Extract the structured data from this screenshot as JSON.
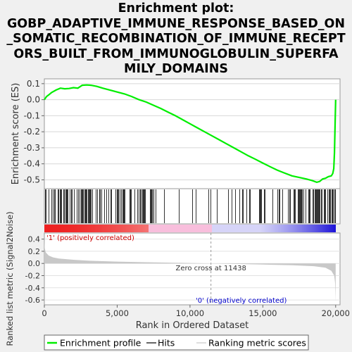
{
  "title_lines": [
    "Enrichment plot:",
    "GOBP_ADAPTIVE_IMMUNE_RESPONSE_BASED_ON",
    "_SOMATIC_RECOMBINATION_OF_IMMUNE_RECEPT",
    "ORS_BUILT_FROM_IMMUNOGLOBULIN_SUPERFA",
    "MILY_DOMAINS"
  ],
  "colors": {
    "enrichment_line": "#00ee00",
    "hits": "#000000",
    "metric_fill": "#c8c8c8",
    "positive_bar": "#ee2020",
    "negative_bar": "#1a10d8",
    "pos_label": "#cc0000",
    "neg_label": "#0000cc"
  },
  "chart_data": {
    "type": "line",
    "xlabel": "Rank in Ordered Dataset",
    "x_ticks": [
      "0",
      "5,000",
      "10,000",
      "15,000",
      "20,000"
    ],
    "x_tick_values": [
      0,
      5000,
      10000,
      15000,
      20000
    ],
    "xlim": [
      0,
      20300
    ],
    "es_panel": {
      "ylabel": "Enrichment score (ES)",
      "ylim": [
        -0.555,
        0.13
      ],
      "y_ticks": [
        "0.1",
        "0.0",
        "-0.1",
        "-0.2",
        "-0.3",
        "-0.4",
        "-0.5"
      ],
      "y_tick_values": [
        0.1,
        0.0,
        -0.1,
        -0.2,
        -0.3,
        -0.4,
        -0.5
      ],
      "series": [
        {
          "name": "Enrichment profile",
          "x": [
            0,
            150,
            300,
            500,
            800,
            1100,
            1400,
            1700,
            2000,
            2300,
            2600,
            2900,
            3200,
            3600,
            4000,
            4500,
            5000,
            5500,
            6000,
            6500,
            7000,
            7500,
            8000,
            8500,
            9000,
            9500,
            10000,
            10500,
            11000,
            11500,
            12000,
            12500,
            13000,
            13500,
            14000,
            14500,
            15000,
            15500,
            16000,
            16500,
            17000,
            17500,
            18000,
            18400,
            18700,
            18900,
            19100,
            19300,
            19500,
            19700,
            19800,
            19870,
            19920,
            19960,
            20000
          ],
          "y": [
            0.0,
            0.02,
            0.03,
            0.045,
            0.06,
            0.072,
            0.068,
            0.07,
            0.075,
            0.072,
            0.09,
            0.092,
            0.09,
            0.083,
            0.072,
            0.06,
            0.048,
            0.036,
            0.02,
            0.0,
            -0.015,
            -0.035,
            -0.055,
            -0.078,
            -0.1,
            -0.125,
            -0.15,
            -0.175,
            -0.2,
            -0.225,
            -0.25,
            -0.275,
            -0.3,
            -0.325,
            -0.35,
            -0.372,
            -0.395,
            -0.418,
            -0.44,
            -0.458,
            -0.475,
            -0.485,
            -0.495,
            -0.505,
            -0.515,
            -0.51,
            -0.495,
            -0.49,
            -0.48,
            -0.475,
            -0.46,
            -0.43,
            -0.33,
            -0.15,
            0.0
          ]
        }
      ]
    },
    "hits_panel": {
      "legend_label": "Hits",
      "dense_ranges": [
        [
          0,
          400,
          0.65
        ],
        [
          400,
          7500,
          0.5
        ],
        [
          7500,
          11600,
          0.1
        ],
        [
          11600,
          13500,
          0.15
        ],
        [
          13500,
          18500,
          0.32
        ],
        [
          18500,
          20000,
          0.6
        ]
      ]
    },
    "metric_panel": {
      "ylabel": "Ranked list metric (Signal2Noise)",
      "legend_label": "Ranking metric scores",
      "ylim": [
        -0.68,
        0.5
      ],
      "y_ticks": [
        "0.4",
        "0.2",
        "0.0",
        "-0.2",
        "-0.4",
        "-0.6"
      ],
      "y_tick_values": [
        0.4,
        0.2,
        0.0,
        -0.2,
        -0.4,
        -0.6
      ],
      "x": [
        0,
        30,
        100,
        300,
        600,
        1000,
        2000,
        3000,
        5000,
        7000,
        9000,
        11438,
        13000,
        15000,
        17000,
        18500,
        19300,
        19700,
        19900,
        19960,
        20000
      ],
      "y": [
        0.42,
        0.25,
        0.18,
        0.13,
        0.1,
        0.08,
        0.06,
        0.045,
        0.03,
        0.02,
        0.012,
        0.0,
        -0.008,
        -0.018,
        -0.03,
        -0.045,
        -0.07,
        -0.12,
        -0.2,
        -0.32,
        -0.63
      ],
      "zero_cross_label": "Zero cross at 11438",
      "zero_cross_value": 11438,
      "pos_label": "'1' (positively correlated)",
      "neg_label": "'0' (negatively correlated)"
    },
    "legend": {
      "placement": "bottom",
      "items": [
        "Enrichment profile",
        "Hits",
        "Ranking metric scores"
      ]
    }
  }
}
